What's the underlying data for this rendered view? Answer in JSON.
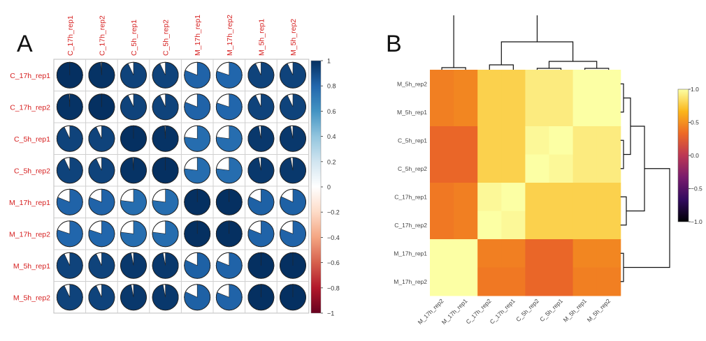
{
  "panels": {
    "a_letter": "A",
    "b_letter": "B"
  },
  "chart_data": [
    {
      "type": "heatmap",
      "style": "correlation pie matrix (corrplot)",
      "title": "",
      "labels_color": "#d62020",
      "row_labels": [
        "C_17h_rep1",
        "C_17h_rep2",
        "C_5h_rep1",
        "C_5h_rep2",
        "M_17h_rep1",
        "M_17h_rep2",
        "M_5h_rep1",
        "M_5h_rep2"
      ],
      "col_labels": [
        "C_17h_rep1",
        "C_17h_rep2",
        "C_5h_rep1",
        "C_5h_rep2",
        "M_17h_rep1",
        "M_17h_rep2",
        "M_5h_rep1",
        "M_5h_rep2"
      ],
      "values": [
        [
          1.0,
          0.99,
          0.93,
          0.93,
          0.81,
          0.8,
          0.93,
          0.93
        ],
        [
          0.99,
          1.0,
          0.93,
          0.93,
          0.81,
          0.8,
          0.93,
          0.93
        ],
        [
          0.93,
          0.93,
          1.0,
          0.99,
          0.77,
          0.77,
          0.97,
          0.97
        ],
        [
          0.93,
          0.93,
          0.99,
          1.0,
          0.77,
          0.77,
          0.97,
          0.97
        ],
        [
          0.81,
          0.81,
          0.77,
          0.77,
          1.0,
          1.0,
          0.82,
          0.82
        ],
        [
          0.8,
          0.8,
          0.77,
          0.77,
          1.0,
          1.0,
          0.81,
          0.81
        ],
        [
          0.93,
          0.93,
          0.97,
          0.97,
          0.82,
          0.81,
          1.0,
          1.0
        ],
        [
          0.93,
          0.93,
          0.97,
          0.97,
          0.82,
          0.81,
          1.0,
          1.0
        ]
      ],
      "colorbar": {
        "range": [
          -1,
          1
        ],
        "ticks": [
          "1",
          "0.8",
          "0.6",
          "0.4",
          "0.2",
          "0",
          "−0.2",
          "−0.4",
          "−0.6",
          "−0.8",
          "−1"
        ],
        "colors": [
          "#053061",
          "#2166ac",
          "#4393c3",
          "#92c5de",
          "#d1e5f0",
          "#ffffff",
          "#fddbc7",
          "#f4a582",
          "#d6604d",
          "#b2182b",
          "#67001f"
        ]
      }
    },
    {
      "type": "heatmap",
      "style": "clustered heatmap with dendrograms",
      "title": "",
      "row_labels": [
        "M_5h_rep2",
        "M_5h_rep1",
        "C_5h_rep1",
        "C_5h_rep2",
        "C_17h_rep1",
        "C_17h_rep2",
        "M_17h_rep1",
        "M_17h_rep2"
      ],
      "col_labels": [
        "M_17h_rep2",
        "M_17h_rep1",
        "C_17h_rep2",
        "C_17h_rep1",
        "C_5h_rep2",
        "C_5h_rep1",
        "M_5h_rep1",
        "M_5h_rep2"
      ],
      "values": [
        [
          0.81,
          0.82,
          0.93,
          0.93,
          0.97,
          0.97,
          1.0,
          1.0
        ],
        [
          0.81,
          0.82,
          0.93,
          0.93,
          0.97,
          0.97,
          1.0,
          1.0
        ],
        [
          0.77,
          0.77,
          0.93,
          0.93,
          0.99,
          1.0,
          0.97,
          0.97
        ],
        [
          0.77,
          0.77,
          0.93,
          0.93,
          1.0,
          0.99,
          0.97,
          0.97
        ],
        [
          0.8,
          0.81,
          0.99,
          1.0,
          0.93,
          0.93,
          0.93,
          0.93
        ],
        [
          0.8,
          0.81,
          1.0,
          0.99,
          0.93,
          0.93,
          0.93,
          0.93
        ],
        [
          1.0,
          1.0,
          0.81,
          0.81,
          0.77,
          0.77,
          0.82,
          0.82
        ],
        [
          1.0,
          1.0,
          0.8,
          0.8,
          0.77,
          0.77,
          0.81,
          0.81
        ]
      ],
      "colorbar": {
        "range": [
          -1,
          1
        ],
        "ticks": [
          "1.0",
          "0.5",
          "0.0",
          "−0.5",
          "−1.0"
        ],
        "colors": [
          "#000004",
          "#320a5e",
          "#781c6d",
          "#bc3754",
          "#ed6925",
          "#fbb61a",
          "#fcffa4"
        ]
      }
    }
  ]
}
